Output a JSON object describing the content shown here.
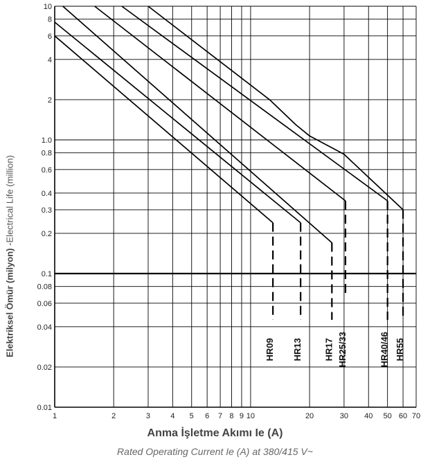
{
  "chart_data": {
    "type": "line",
    "xscale": "log",
    "yscale": "log",
    "xlim": [
      1,
      70
    ],
    "ylim": [
      0.01,
      10
    ],
    "grid": true,
    "xticks": [
      {
        "v": 1,
        "label": "1"
      },
      {
        "v": 2,
        "label": "2"
      },
      {
        "v": 3,
        "label": "3"
      },
      {
        "v": 4,
        "label": "4"
      },
      {
        "v": 5,
        "label": "5"
      },
      {
        "v": 6,
        "label": "6"
      },
      {
        "v": 7,
        "label": "7"
      },
      {
        "v": 8,
        "label": "8"
      },
      {
        "v": 9,
        "label": "9"
      },
      {
        "v": 10,
        "label": "10"
      },
      {
        "v": 20,
        "label": "20"
      },
      {
        "v": 30,
        "label": "30"
      },
      {
        "v": 40,
        "label": "40"
      },
      {
        "v": 50,
        "label": "50"
      },
      {
        "v": 60,
        "label": "60"
      },
      {
        "v": 70,
        "label": "70"
      }
    ],
    "yticks": [
      {
        "v": 10,
        "label": "10"
      },
      {
        "v": 8,
        "label": "8"
      },
      {
        "v": 6,
        "label": "6"
      },
      {
        "v": 4,
        "label": "4"
      },
      {
        "v": 2,
        "label": "2"
      },
      {
        "v": 1,
        "label": "1.0"
      },
      {
        "v": 0.8,
        "label": "0.8"
      },
      {
        "v": 0.6,
        "label": "0.6"
      },
      {
        "v": 0.4,
        "label": "0.4"
      },
      {
        "v": 0.3,
        "label": "0.3"
      },
      {
        "v": 0.2,
        "label": "0.2"
      },
      {
        "v": 0.1,
        "label": "0.1"
      },
      {
        "v": 0.08,
        "label": "0.08"
      },
      {
        "v": 0.06,
        "label": "0.06"
      },
      {
        "v": 0.04,
        "label": "0.04"
      },
      {
        "v": 0.02,
        "label": "0.02"
      },
      {
        "v": 0.01,
        "label": "0.01"
      }
    ],
    "ylabel_tr": "Elektriksel Ömür (milyon)",
    "ylabel_en": "Electrical Life (million)",
    "xlabel_tr": "Anma İşletme Akımı Ie (A)",
    "xlabel_en": "Rated Operating Current Ie (A) at 380/415 V~",
    "series": [
      {
        "name": "HR09",
        "points": [
          [
            1,
            6.0
          ],
          [
            13,
            0.24
          ]
        ],
        "drop_x": 13,
        "drop_to": 0.045
      },
      {
        "name": "HR13",
        "points": [
          [
            1,
            7.6
          ],
          [
            18,
            0.24
          ]
        ],
        "drop_x": 18,
        "drop_to": 0.045
      },
      {
        "name": "HR17",
        "points": [
          [
            1.1,
            10
          ],
          [
            26,
            0.17
          ]
        ],
        "drop_x": 26,
        "drop_to": 0.045
      },
      {
        "name": "HR25/33",
        "points": [
          [
            1.6,
            10
          ],
          [
            30.5,
            0.35
          ]
        ],
        "drop_x": 30.5,
        "drop_to": 0.07
      },
      {
        "name": "HR40/46",
        "points": [
          [
            2.2,
            10
          ],
          [
            50,
            0.35
          ]
        ],
        "drop_x": 50,
        "drop_to": 0.045
      },
      {
        "name": "HR55",
        "points": [
          [
            3.0,
            10
          ],
          [
            12.5,
            2.0
          ],
          [
            17,
            1.3
          ],
          [
            20,
            1.07
          ],
          [
            30,
            0.78
          ],
          [
            60,
            0.3
          ]
        ],
        "drop_x": 60,
        "drop_to": 0.045
      }
    ]
  }
}
